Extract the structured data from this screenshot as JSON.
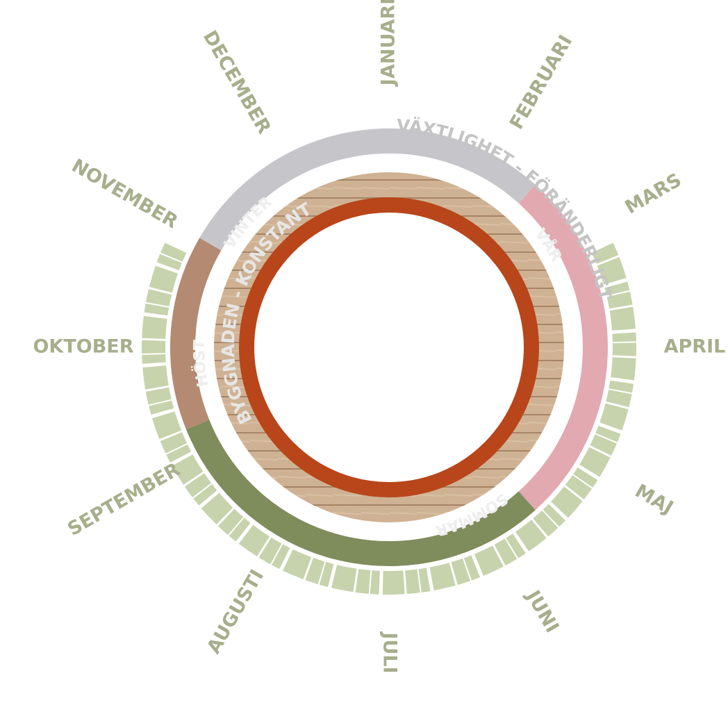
{
  "months": [
    "JANUARI",
    "FEBRUARI",
    "MARS",
    "APRIL",
    "MAJ",
    "JUNI",
    "JULI",
    "AUGUSTI",
    "SEPTEMBER",
    "OKTOBER",
    "NOVEMBER",
    "DECEMBER"
  ],
  "ring_labels": {
    "outer": "VÄXTLIGHET - FÖRÄNDERLIGT",
    "inner": "BYGGNADEN - KONSTANT"
  },
  "seasons": [
    "VINTER",
    "VÅR",
    "SOMMAR",
    "HÖST"
  ]
}
